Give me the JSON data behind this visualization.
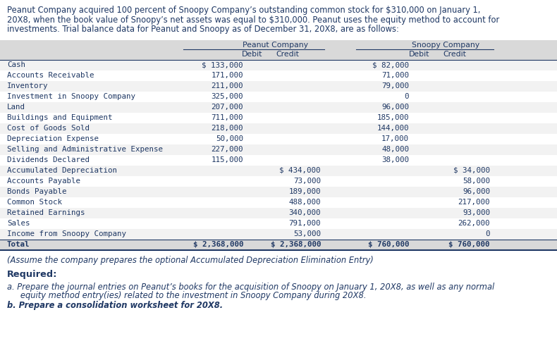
{
  "intro_text_lines": [
    "Peanut Company acquired 100 percent of Snoopy Company’s outstanding common stock for $310,000 on January 1,",
    "20X8, when the book value of Snoopy’s net assets was equal to $310,000. Peanut uses the equity method to account for",
    "investments. Trial balance data for Peanut and Snoopy as of December 31, 20X8, are as follows:"
  ],
  "header1": "Peanut Company",
  "header2": "Snoopy Company",
  "col_headers": [
    "Debit",
    "Credit",
    "Debit",
    "Credit"
  ],
  "rows": [
    {
      "label": "Cash",
      "pd": "$ 133,000",
      "pc": "",
      "sd": "$ 82,000",
      "sc": ""
    },
    {
      "label": "Accounts Receivable",
      "pd": "171,000",
      "pc": "",
      "sd": "71,000",
      "sc": ""
    },
    {
      "label": "Inventory",
      "pd": "211,000",
      "pc": "",
      "sd": "79,000",
      "sc": ""
    },
    {
      "label": "Investment in Snoopy Company",
      "pd": "325,000",
      "pc": "",
      "sd": "0",
      "sc": ""
    },
    {
      "label": "Land",
      "pd": "207,000",
      "pc": "",
      "sd": "96,000",
      "sc": ""
    },
    {
      "label": "Buildings and Equipment",
      "pd": "711,000",
      "pc": "",
      "sd": "185,000",
      "sc": ""
    },
    {
      "label": "Cost of Goods Sold",
      "pd": "218,000",
      "pc": "",
      "sd": "144,000",
      "sc": ""
    },
    {
      "label": "Depreciation Expense",
      "pd": "50,000",
      "pc": "",
      "sd": "17,000",
      "sc": ""
    },
    {
      "label": "Selling and Administrative Expense",
      "pd": "227,000",
      "pc": "",
      "sd": "48,000",
      "sc": ""
    },
    {
      "label": "Dividends Declared",
      "pd": "115,000",
      "pc": "",
      "sd": "38,000",
      "sc": ""
    },
    {
      "label": "Accumulated Depreciation",
      "pd": "",
      "pc": "$ 434,000",
      "sd": "",
      "sc": "$ 34,000"
    },
    {
      "label": "Accounts Payable",
      "pd": "",
      "pc": "73,000",
      "sd": "",
      "sc": "58,000"
    },
    {
      "label": "Bonds Payable",
      "pd": "",
      "pc": "189,000",
      "sd": "",
      "sc": "96,000"
    },
    {
      "label": "Common Stock",
      "pd": "",
      "pc": "488,000",
      "sd": "",
      "sc": "217,000"
    },
    {
      "label": "Retained Earnings",
      "pd": "",
      "pc": "340,000",
      "sd": "",
      "sc": "93,000"
    },
    {
      "label": "Sales",
      "pd": "",
      "pc": "791,000",
      "sd": "",
      "sc": "262,000"
    },
    {
      "label": "Income from Snoopy Company",
      "pd": "",
      "pc": "53,000",
      "sd": "",
      "sc": "0"
    },
    {
      "label": "Total",
      "pd": "$ 2,368,000",
      "pc": "$ 2,368,000",
      "sd": "$ 760,000",
      "sc": "$ 760,000"
    }
  ],
  "footnote": "(Assume the company prepares the optional Accumulated Depreciation Elimination Entry)",
  "required_label": "Required:",
  "req_a_line1": "a. Prepare the journal entries on Peanut’s books for the acquisition of Snoopy on January 1, 20X8, as well as any normal",
  "req_a_line2": "   equity method entry(ies) related to the investment in Snoopy Company during 20X8.",
  "req_b": "b. Prepare a consolidation worksheet for 20X8.",
  "bg_color": "#ffffff",
  "table_header_bg": "#d9d9d9",
  "row_even_bg": "#f2f2f2",
  "row_odd_bg": "#ffffff",
  "total_row_bg": "#d9d9d9",
  "text_color": "#1f3864",
  "intro_fontsize": 8.3,
  "table_fontsize": 7.8,
  "footer_fontsize": 8.3
}
